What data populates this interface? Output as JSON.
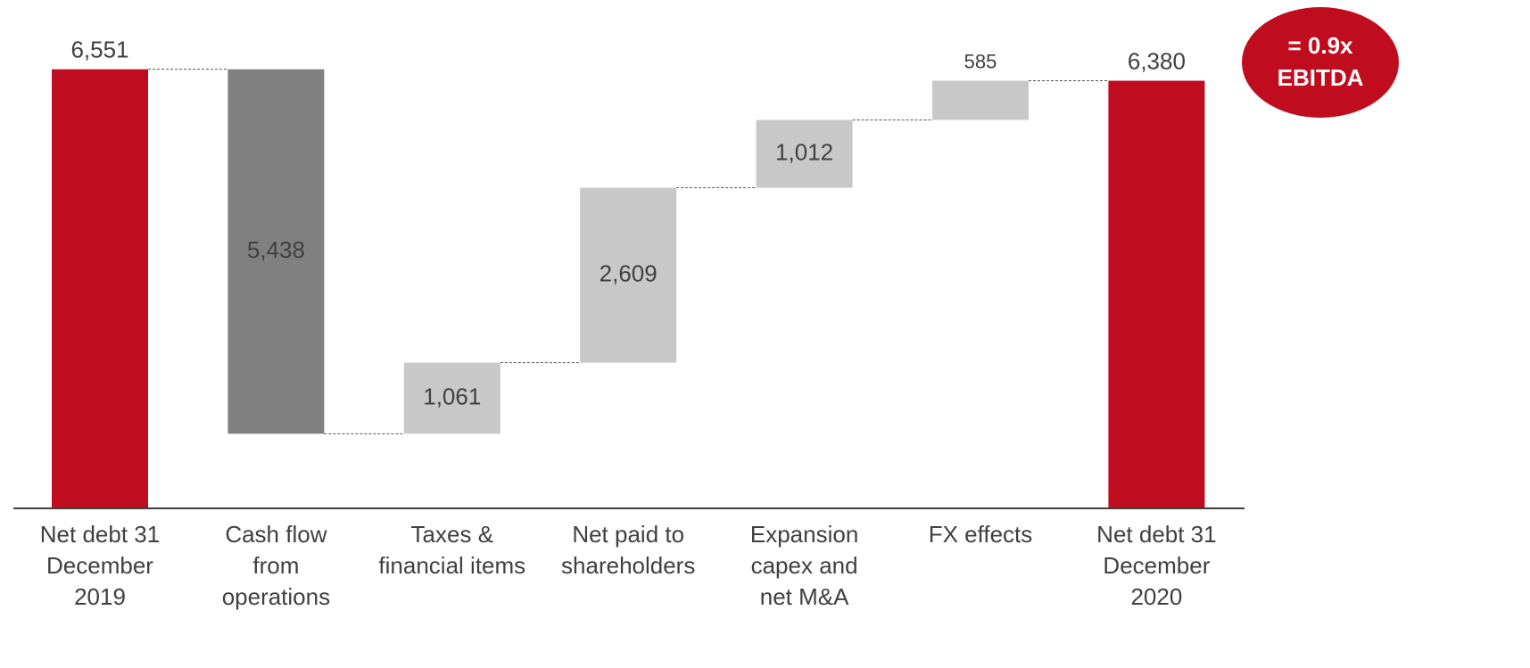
{
  "chart_data": {
    "type": "waterfall",
    "categories": [
      [
        "Net debt 31",
        "December",
        "2019"
      ],
      [
        "Cash flow",
        "from",
        "operations"
      ],
      [
        "Taxes &",
        "financial items"
      ],
      [
        "Net paid to",
        "shareholders"
      ],
      [
        "Expansion",
        "capex and",
        "net M&A"
      ],
      [
        "FX effects"
      ],
      [
        "Net debt 31",
        "December",
        "2020"
      ]
    ],
    "values": [
      6551,
      5438,
      1061,
      2609,
      1012,
      585,
      6380
    ],
    "value_labels": [
      "6,551",
      "5,438",
      "1,061",
      "2,609",
      "1,012",
      "585",
      "6,380"
    ],
    "measure": [
      "total",
      "decrease",
      "increase",
      "increase",
      "increase",
      "increase",
      "total"
    ],
    "colors": {
      "total": "#c00c1f",
      "decrease": "#808080",
      "increase": "#c8c8c8"
    },
    "ylim": [
      0,
      6600
    ],
    "badge": {
      "lines": [
        "= 0.9x",
        "EBITDA"
      ],
      "color": "#c00c1f"
    }
  }
}
